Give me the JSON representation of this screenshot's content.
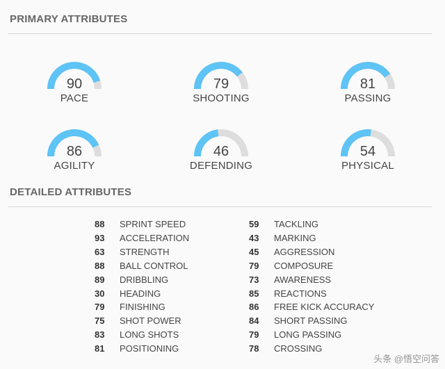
{
  "colors": {
    "fill": "#5ec3f5",
    "track": "#dddddd"
  },
  "primary": {
    "title": "PRIMARY ATTRIBUTES",
    "items": [
      {
        "label": "PACE",
        "value": 90
      },
      {
        "label": "SHOOTING",
        "value": 79
      },
      {
        "label": "PASSING",
        "value": 81
      },
      {
        "label": "AGILITY",
        "value": 86
      },
      {
        "label": "DEFENDING",
        "value": 46
      },
      {
        "label": "PHYSICAL",
        "value": 54
      }
    ]
  },
  "detailed": {
    "title": "DETAILED ATTRIBUTES",
    "left": [
      {
        "value": "88",
        "name": "SPRINT SPEED"
      },
      {
        "value": "93",
        "name": "ACCELERATION"
      },
      {
        "value": "63",
        "name": "STRENGTH"
      },
      {
        "value": "88",
        "name": "BALL CONTROL"
      },
      {
        "value": "89",
        "name": "DRIBBLING"
      },
      {
        "value": "30",
        "name": "HEADING"
      },
      {
        "value": "79",
        "name": "FINISHING"
      },
      {
        "value": "75",
        "name": "SHOT POWER"
      },
      {
        "value": "83",
        "name": "LONG SHOTS"
      },
      {
        "value": "81",
        "name": "POSITIONING"
      }
    ],
    "right": [
      {
        "value": "59",
        "name": "TACKLING"
      },
      {
        "value": "43",
        "name": "MARKING"
      },
      {
        "value": "45",
        "name": "AGGRESSION"
      },
      {
        "value": "79",
        "name": "COMPOSURE"
      },
      {
        "value": "73",
        "name": "AWARENESS"
      },
      {
        "value": "85",
        "name": "REACTIONS"
      },
      {
        "value": "86",
        "name": "FREE KICK ACCURACY"
      },
      {
        "value": "84",
        "name": "SHORT PASSING"
      },
      {
        "value": "79",
        "name": "LONG PASSING"
      },
      {
        "value": "78",
        "name": "CROSSING"
      }
    ]
  },
  "watermark": "头条 @悟空问答"
}
